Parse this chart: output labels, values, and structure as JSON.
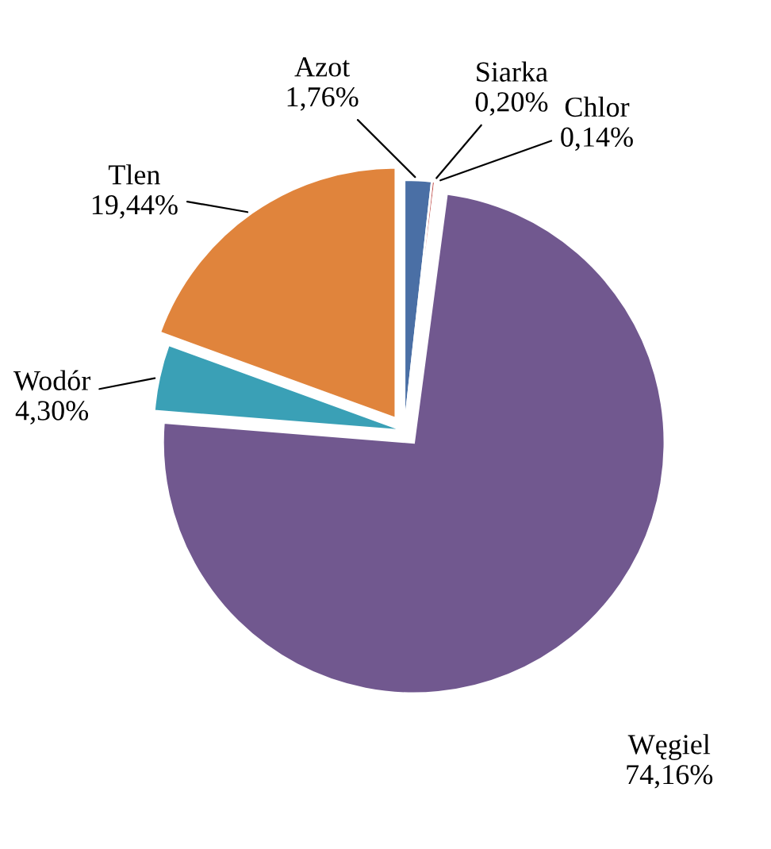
{
  "chart_data": {
    "type": "pie",
    "categories": [
      "Azot",
      "Siarka",
      "Chlor",
      "Węgiel",
      "Wodór",
      "Tlen"
    ],
    "values": [
      1.76,
      0.2,
      0.14,
      74.16,
      4.3,
      19.44
    ],
    "value_labels": [
      "1,76%",
      "0,20%",
      "0,14%",
      "74,16%",
      "4,30%",
      "19,44%"
    ],
    "colors": [
      "#4a6fa5",
      "#c0504d",
      "#9bbb59",
      "#71588f",
      "#3aa0b6",
      "#e0843c"
    ],
    "legend": false
  }
}
